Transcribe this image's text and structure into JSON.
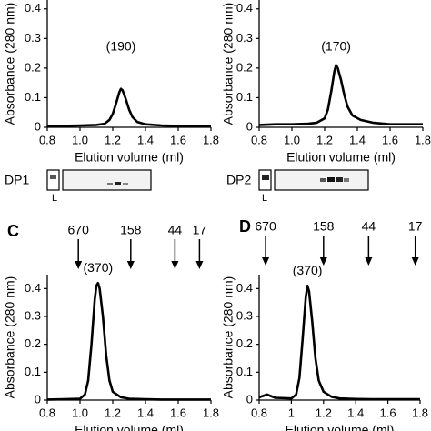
{
  "chart_data": [
    {
      "type": "line",
      "color": "#000000",
      "xlabel": "Elution volume (ml)",
      "ylabel": "Absorbance (280 nm)",
      "xlim": [
        0.8,
        1.8
      ],
      "xticks": [
        0.8,
        {
          "value": 1,
          "label": "1.0"
        },
        1.2,
        1.4,
        1.6,
        1.8
      ],
      "ylim": [
        0,
        0.43
      ],
      "yticks": [
        0,
        0.1,
        0.2,
        0.3,
        0.4
      ],
      "x": [
        0.8,
        0.9,
        1.0,
        1.1,
        1.15,
        1.18,
        1.2,
        1.22,
        1.24,
        1.25,
        1.26,
        1.28,
        1.3,
        1.32,
        1.35,
        1.4,
        1.5,
        1.6,
        1.7,
        1.8
      ],
      "values": [
        0.005,
        0.005,
        0.006,
        0.008,
        0.012,
        0.025,
        0.045,
        0.08,
        0.118,
        0.13,
        0.125,
        0.095,
        0.06,
        0.035,
        0.018,
        0.01,
        0.006,
        0.005,
        0.004,
        0.004
      ],
      "annotation": "(190)"
    },
    {
      "type": "line",
      "color": "#000000",
      "xlabel": "Elution volume (ml)",
      "ylabel": "Absorbance (280 nm)",
      "xlim": [
        0.8,
        1.8
      ],
      "xticks": [
        0.8,
        {
          "value": 1,
          "label": "1.0"
        },
        1.2,
        1.4,
        1.6,
        1.8
      ],
      "ylim": [
        0,
        0.43
      ],
      "yticks": [
        0,
        0.1,
        0.2,
        0.3,
        0.4
      ],
      "x": [
        0.8,
        0.9,
        1.0,
        1.1,
        1.15,
        1.2,
        1.22,
        1.24,
        1.26,
        1.27,
        1.28,
        1.3,
        1.32,
        1.34,
        1.37,
        1.42,
        1.5,
        1.6,
        1.7,
        1.8
      ],
      "values": [
        0.008,
        0.01,
        0.01,
        0.012,
        0.015,
        0.03,
        0.06,
        0.12,
        0.19,
        0.21,
        0.2,
        0.16,
        0.11,
        0.07,
        0.04,
        0.025,
        0.015,
        0.01,
        0.01,
        0.01
      ],
      "annotation": "(170)"
    },
    {
      "type": "line",
      "panel": "C",
      "color": "#000000",
      "xlabel": "Elution volume (ml)",
      "ylabel": "Absorbance (280 nm)",
      "xlim": [
        0.8,
        1.8
      ],
      "xticks": [
        0.8,
        {
          "value": 1,
          "label": "1.0"
        },
        1.2,
        1.4,
        1.6,
        1.8
      ],
      "ylim": [
        0,
        0.45
      ],
      "yticks": [
        0,
        0.1,
        0.2,
        0.3,
        0.4
      ],
      "x": [
        0.8,
        0.9,
        1.0,
        1.03,
        1.05,
        1.07,
        1.09,
        1.1,
        1.11,
        1.12,
        1.14,
        1.16,
        1.18,
        1.2,
        1.25,
        1.3,
        1.4,
        1.5,
        1.6,
        1.7,
        1.8
      ],
      "values": [
        0.002,
        0.003,
        0.005,
        0.02,
        0.07,
        0.2,
        0.36,
        0.41,
        0.42,
        0.4,
        0.3,
        0.16,
        0.07,
        0.03,
        0.01,
        0.005,
        0.003,
        0.002,
        0.002,
        0.002,
        0.002
      ],
      "annotation": "(370)",
      "markers": {
        "labels": [
          670,
          158,
          44,
          17
        ],
        "x": [
          0.99,
          1.31,
          1.58,
          1.73
        ]
      }
    },
    {
      "type": "line",
      "panel": "D",
      "color": "#000000",
      "xlabel": "Elution volume (ml)",
      "ylabel": "Absorbance (280 nm)",
      "xlim": [
        0.8,
        1.8
      ],
      "xticks": [
        0.8,
        1,
        1.2,
        1.4,
        1.6,
        1.8
      ],
      "ylim": [
        0,
        0.45
      ],
      "yticks": [
        0,
        0.1,
        0.2,
        0.3,
        0.4
      ],
      "x": [
        0.8,
        0.85,
        0.9,
        1.0,
        1.03,
        1.05,
        1.07,
        1.09,
        1.1,
        1.11,
        1.13,
        1.15,
        1.17,
        1.2,
        1.25,
        1.3,
        1.4,
        1.5,
        1.6,
        1.7,
        1.8
      ],
      "values": [
        0.01,
        0.02,
        0.008,
        0.006,
        0.02,
        0.08,
        0.22,
        0.37,
        0.41,
        0.39,
        0.28,
        0.15,
        0.07,
        0.03,
        0.012,
        0.006,
        0.004,
        0.003,
        0.003,
        0.003,
        0.003
      ],
      "annotation": "(370)",
      "markers": {
        "labels": [
          670,
          158,
          44,
          17
        ],
        "x": [
          0.84,
          1.2,
          1.48,
          1.77
        ]
      }
    }
  ],
  "gels": [
    {
      "label": "DP1",
      "lane": "L"
    },
    {
      "label": "DP2",
      "lane": "L"
    }
  ]
}
